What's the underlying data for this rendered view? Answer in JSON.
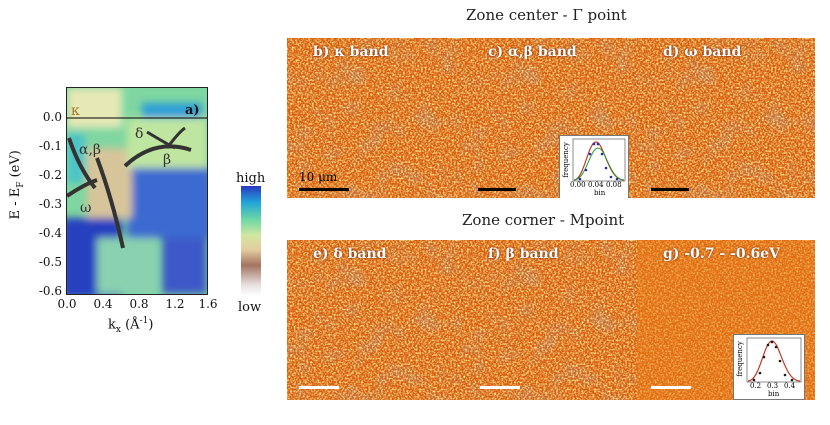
{
  "figure": {
    "arpes": {
      "panel_label": "a)",
      "y_axis_label": "E - E",
      "y_axis_sub": "F",
      "y_axis_unit": "(eV)",
      "x_axis_label": "k",
      "x_axis_sub": "x",
      "x_axis_unit_open": "(Å",
      "x_axis_unit_exp": "-1",
      "x_axis_unit_close": ")",
      "y_ticks": [
        "0.0",
        "-0.1",
        "-0.2",
        "-0.3",
        "-0.4",
        "-0.5",
        "-0.6"
      ],
      "x_ticks": [
        "0.0",
        "0.4",
        "0.8",
        "1.2",
        "1.6"
      ],
      "band_labels": {
        "kappa": "κ",
        "alpha_beta": "α,β",
        "omega": "ω",
        "delta": "δ",
        "beta": "β"
      }
    },
    "colorbar": {
      "high": "high",
      "low": "low"
    },
    "zone_center": {
      "title": "Zone center - Γ point",
      "panels": [
        {
          "label": "b) κ  band"
        },
        {
          "label": "c) α,β  band"
        },
        {
          "label": "d) ω  band"
        }
      ],
      "scale_label": "10 μm"
    },
    "zone_corner": {
      "title": "Zone corner - Mpoint",
      "panels": [
        {
          "label": "e)  δ  band"
        },
        {
          "label": "f) β band"
        },
        {
          "label": "g) -0.7 - -0.6eV"
        }
      ]
    },
    "inset_c": {
      "y_label": "frequency",
      "x_label": "bin",
      "x_ticks": [
        "0.00",
        "0.04",
        "0.08"
      ]
    },
    "inset_g": {
      "y_label": "frequency",
      "x_label": "bin",
      "x_ticks": [
        "0.2",
        "0.3",
        "0.4"
      ]
    },
    "colors": {
      "map_base": "#d85a0e",
      "map_bright": "#ffe75a",
      "map_dark": "#8a2a10",
      "scalebar_dark": "#000000",
      "scalebar_light": "#ffffff",
      "band_line": "#333333"
    }
  }
}
